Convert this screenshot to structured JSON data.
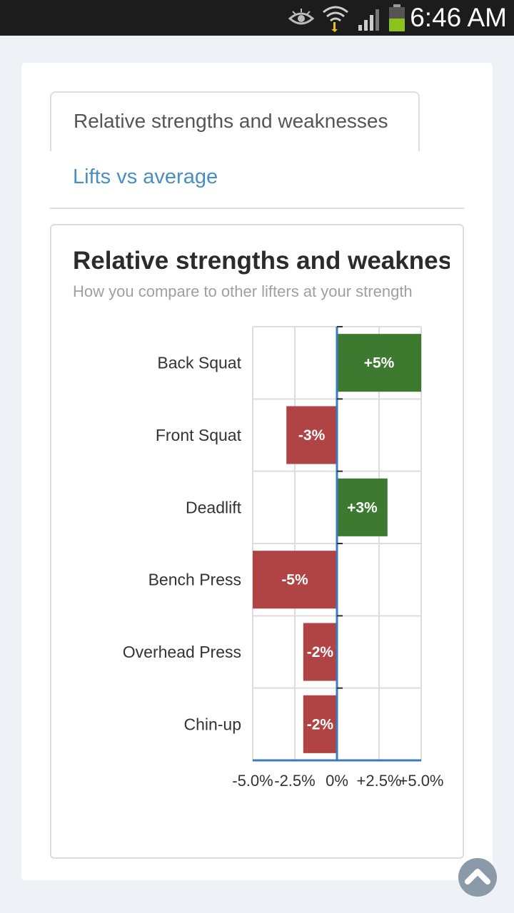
{
  "status_bar": {
    "time": "6:46 AM",
    "icons": [
      "eye-icon",
      "wifi-icon",
      "signal-icon",
      "battery-icon"
    ]
  },
  "tabs": [
    {
      "label": "Relative strengths and weaknesses",
      "active": true
    },
    {
      "label": "Lifts vs average",
      "active": false
    }
  ],
  "chart_data": {
    "type": "bar",
    "orientation": "horizontal",
    "title": "Relative strengths and weaknesses",
    "subtitle": "How you compare to other lifters at your strength",
    "categories": [
      "Back Squat",
      "Front Squat",
      "Deadlift",
      "Bench Press",
      "Overhead Press",
      "Chin-up"
    ],
    "values": [
      5,
      -3,
      3,
      -5,
      -2,
      -2
    ],
    "data_labels": [
      "+5%",
      "-3%",
      "+3%",
      "-5%",
      "-2%",
      "-2%"
    ],
    "x_ticks": [
      -5,
      -2.5,
      0,
      2.5,
      5
    ],
    "x_tick_labels": [
      "-5.0%",
      "-2.5%",
      "0%",
      "+2.5%",
      "+5.0%"
    ],
    "xlim": [
      -5,
      5
    ],
    "grid": true,
    "colors": {
      "positive": "#3d7a2f",
      "negative": "#b04444",
      "axis": "#3b7bbf",
      "grid": "#dddddd"
    }
  },
  "scroll_top": {
    "icon": "chevron-up-icon"
  }
}
